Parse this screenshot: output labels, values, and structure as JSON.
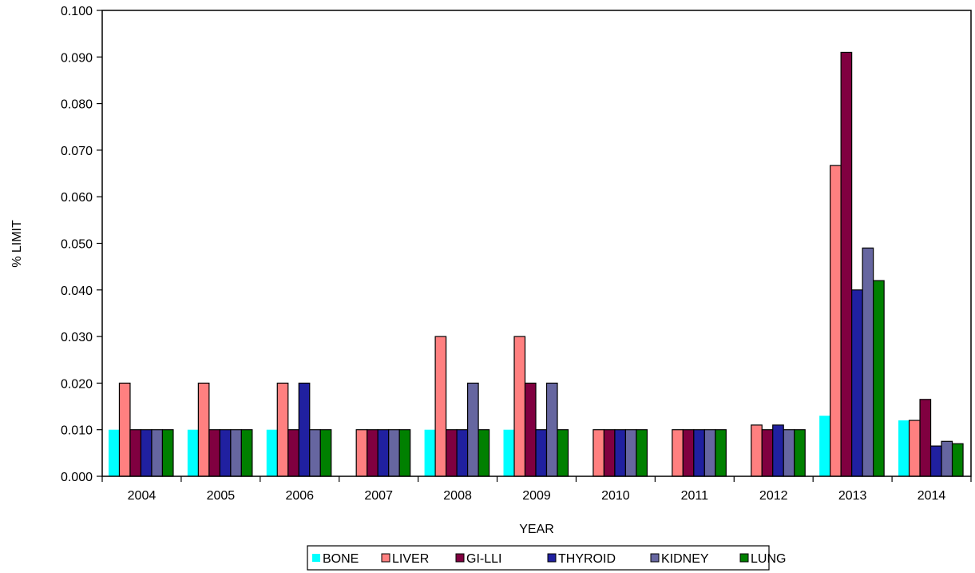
{
  "chart_data": {
    "type": "bar",
    "title": "",
    "xlabel": "YEAR",
    "ylabel": "% LIMIT",
    "ylim": [
      0,
      0.1
    ],
    "yticks": [
      "0.000",
      "0.010",
      "0.020",
      "0.030",
      "0.040",
      "0.050",
      "0.060",
      "0.070",
      "0.080",
      "0.090",
      "0.100"
    ],
    "grid": false,
    "legend_position": "bottom",
    "categories": [
      "2004",
      "2005",
      "2006",
      "2007",
      "2008",
      "2009",
      "2010",
      "2011",
      "2012",
      "2013",
      "2014"
    ],
    "series": [
      {
        "name": "BONE",
        "color": "#00ffff",
        "outline": false,
        "values": [
          0.01,
          0.01,
          0.01,
          0,
          0.01,
          0.01,
          0,
          0,
          0,
          0.013,
          0.012
        ]
      },
      {
        "name": "LIVER",
        "color": "#ff8080",
        "outline": true,
        "values": [
          0.02,
          0.02,
          0.02,
          0.01,
          0.03,
          0.03,
          0.01,
          0.01,
          0.011,
          0.0667,
          0.012
        ]
      },
      {
        "name": "GI-LLI",
        "color": "#800040",
        "outline": true,
        "values": [
          0.01,
          0.01,
          0.01,
          0.01,
          0.01,
          0.02,
          0.01,
          0.01,
          0.01,
          0.091,
          0.0165
        ]
      },
      {
        "name": "THYROID",
        "color": "#2020a0",
        "outline": true,
        "values": [
          0.01,
          0.01,
          0.02,
          0.01,
          0.01,
          0.01,
          0.01,
          0.01,
          0.011,
          0.04,
          0.0065
        ]
      },
      {
        "name": "KIDNEY",
        "color": "#6666a0",
        "outline": true,
        "values": [
          0.01,
          0.01,
          0.01,
          0.01,
          0.02,
          0.02,
          0.01,
          0.01,
          0.01,
          0.049,
          0.0075
        ]
      },
      {
        "name": "LUNG",
        "color": "#008000",
        "outline": true,
        "values": [
          0.01,
          0.01,
          0.01,
          0.01,
          0.01,
          0.01,
          0.01,
          0.01,
          0.01,
          0.042,
          0.007
        ]
      }
    ]
  }
}
